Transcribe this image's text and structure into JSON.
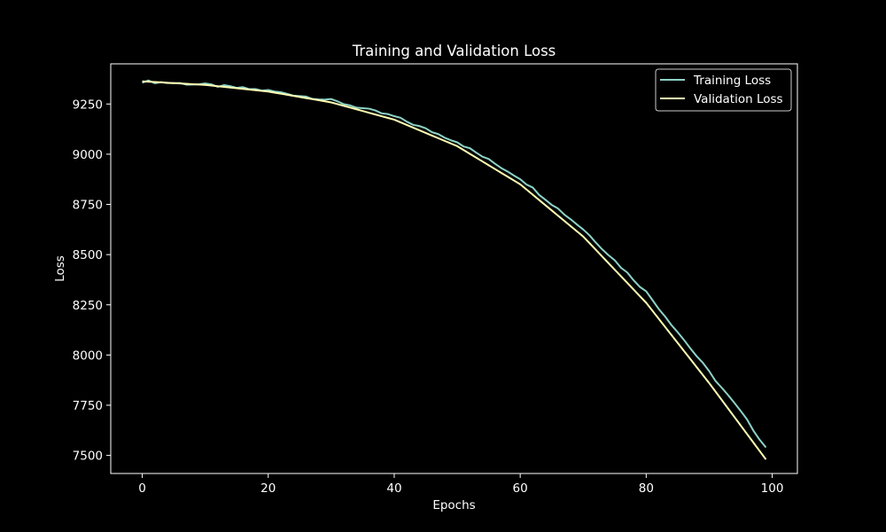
{
  "chart_data": {
    "type": "line",
    "title": "Training and Validation Loss",
    "xlabel": "Epochs",
    "ylabel": "Loss",
    "xlim": [
      -5,
      104
    ],
    "ylim": [
      7410,
      9450
    ],
    "xticks": [
      0,
      20,
      40,
      60,
      80,
      100
    ],
    "yticks": [
      7500,
      7750,
      8000,
      8250,
      8500,
      8750,
      9000,
      9250
    ],
    "grid": false,
    "legend_position": "top-right",
    "background": "#000000",
    "foreground": "#ffffff",
    "x_start": 0,
    "x_end": 99,
    "series": [
      {
        "name": "Training Loss",
        "color": "#8dd3c7",
        "anchors": [
          [
            0,
            9363
          ],
          [
            10,
            9346
          ],
          [
            20,
            9316
          ],
          [
            30,
            9268
          ],
          [
            40,
            9188
          ],
          [
            50,
            9062
          ],
          [
            60,
            8880
          ],
          [
            70,
            8627
          ],
          [
            80,
            8314
          ],
          [
            85,
            8115
          ],
          [
            90,
            7915
          ],
          [
            95,
            7718
          ],
          [
            99,
            7540
          ]
        ],
        "noise": 7
      },
      {
        "name": "Validation Loss",
        "color": "#ffffb3",
        "anchors": [
          [
            0,
            9363
          ],
          [
            10,
            9345
          ],
          [
            20,
            9312
          ],
          [
            30,
            9258
          ],
          [
            40,
            9172
          ],
          [
            50,
            9040
          ],
          [
            60,
            8850
          ],
          [
            70,
            8590
          ],
          [
            80,
            8260
          ],
          [
            90,
            7860
          ],
          [
            99,
            7480
          ]
        ],
        "noise": 0
      }
    ]
  }
}
